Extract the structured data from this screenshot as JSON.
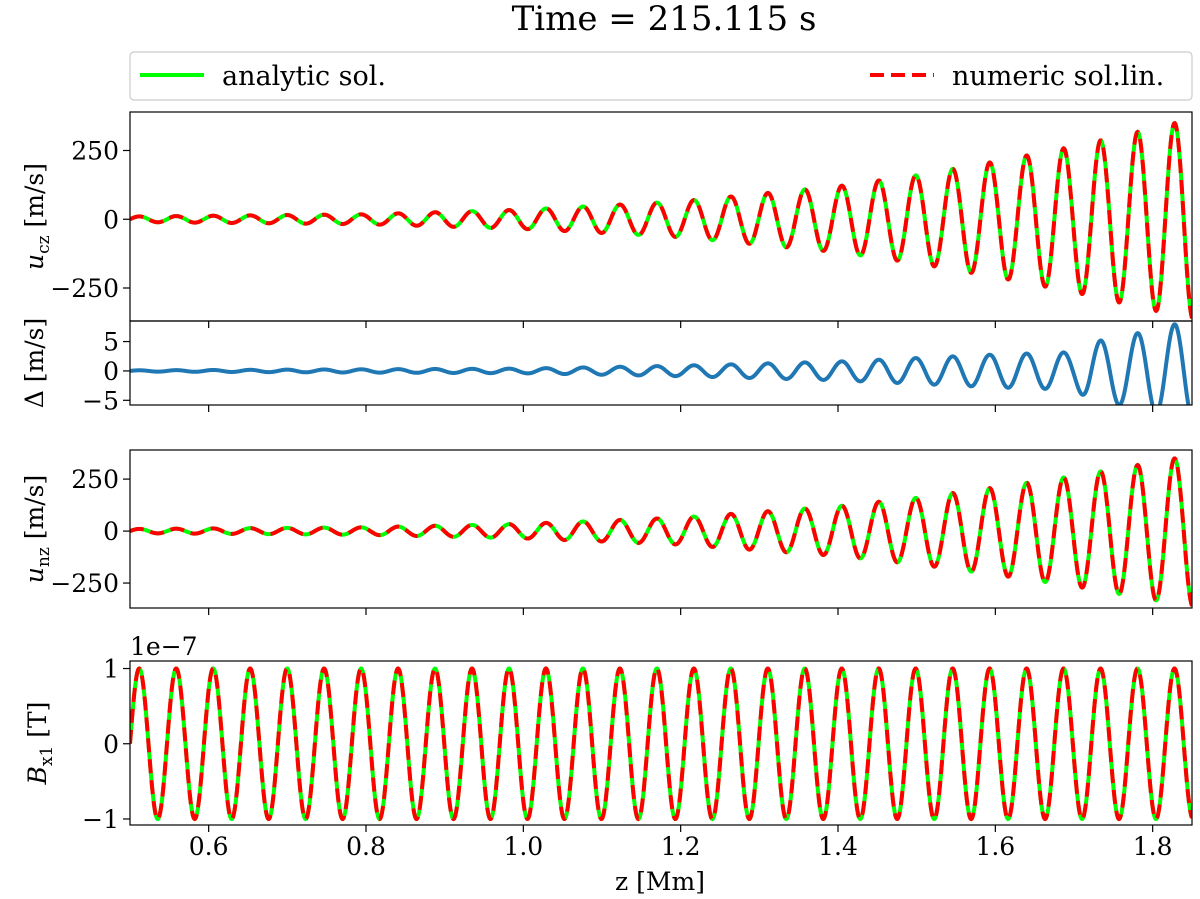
{
  "title": "Time = 215.115 s",
  "legend": {
    "position": "top-span",
    "entries": [
      {
        "label": "analytic sol.",
        "color": "#00ff00",
        "style": "solid"
      },
      {
        "label": "numeric sol.lin.",
        "color": "#ff0000",
        "style": "dashed"
      }
    ]
  },
  "xlabel": "z [Mm]",
  "chart_data": [
    {
      "type": "line",
      "panel": "u_cz",
      "ylabel_main": "u",
      "ylabel_sub": "cz",
      "ylabel_unit": " [m/s]",
      "xlim": [
        0.5,
        1.85
      ],
      "ylim": [
        -370,
        390
      ],
      "yticks": [
        250,
        0,
        -250
      ],
      "ytick_labels": [
        "250",
        "0",
        "−250"
      ],
      "wavelength_Mm": 0.047,
      "envelope": [
        [
          0.5,
          10
        ],
        [
          0.8,
          18
        ],
        [
          1.0,
          35
        ],
        [
          1.2,
          65
        ],
        [
          1.4,
          120
        ],
        [
          1.5,
          160
        ],
        [
          1.6,
          210
        ],
        [
          1.7,
          265
        ],
        [
          1.8,
          330
        ],
        [
          1.85,
          365
        ]
      ],
      "series": [
        {
          "name": "analytic sol.",
          "color": "#00ff00"
        },
        {
          "name": "numeric sol.lin.",
          "color": "#ff0000"
        }
      ]
    },
    {
      "type": "line",
      "panel": "delta",
      "ylabel_main": "Δ [m/s]",
      "xlim": [
        0.5,
        1.85
      ],
      "ylim": [
        -5.8,
        8.5
      ],
      "yticks": [
        5,
        0,
        -5
      ],
      "ytick_labels": [
        "5",
        "0",
        "−5"
      ],
      "wavelength_Mm": 0.047,
      "envelope": [
        [
          0.5,
          0.1
        ],
        [
          1.0,
          0.4
        ],
        [
          1.2,
          0.9
        ],
        [
          1.4,
          1.6
        ],
        [
          1.5,
          2.2
        ],
        [
          1.6,
          2.8
        ],
        [
          1.7,
          3.2
        ],
        [
          1.72,
          4.8
        ],
        [
          1.78,
          6.4
        ],
        [
          1.83,
          8.0
        ],
        [
          1.85,
          8.2
        ]
      ],
      "series": [
        {
          "color": "#1f77b4"
        }
      ]
    },
    {
      "type": "line",
      "panel": "u_nz",
      "ylabel_main": "u",
      "ylabel_sub": "nz",
      "ylabel_unit": " [m/s]",
      "xlim": [
        0.5,
        1.85
      ],
      "ylim": [
        -370,
        390
      ],
      "yticks": [
        250,
        0,
        -250
      ],
      "ytick_labels": [
        "250",
        "0",
        "−250"
      ],
      "wavelength_Mm": 0.047,
      "envelope": [
        [
          0.5,
          10
        ],
        [
          0.8,
          18
        ],
        [
          1.0,
          35
        ],
        [
          1.2,
          65
        ],
        [
          1.4,
          120
        ],
        [
          1.5,
          160
        ],
        [
          1.6,
          210
        ],
        [
          1.7,
          265
        ],
        [
          1.8,
          330
        ],
        [
          1.85,
          365
        ]
      ],
      "series": [
        {
          "name": "analytic sol.",
          "color": "#00ff00"
        },
        {
          "name": "numeric sol.lin.",
          "color": "#ff0000"
        }
      ]
    },
    {
      "type": "line",
      "panel": "B_x1",
      "ylabel_main": "B",
      "ylabel_sub": "x1",
      "ylabel_unit": " [T]",
      "offset_label": "1e−7",
      "xlim": [
        0.5,
        1.85
      ],
      "ylim": [
        -1.08,
        1.1
      ],
      "yticks": [
        1,
        0,
        -1
      ],
      "ytick_labels": [
        "1",
        "0",
        "−1"
      ],
      "wavelength_Mm": 0.047,
      "envelope": [
        [
          0.5,
          1.0
        ],
        [
          1.85,
          1.0
        ]
      ],
      "series": [
        {
          "name": "analytic sol.",
          "color": "#00ff00"
        },
        {
          "name": "numeric sol.lin.",
          "color": "#ff0000"
        }
      ]
    }
  ],
  "xticks": [
    0.6,
    0.8,
    1.0,
    1.2,
    1.4,
    1.6,
    1.8
  ],
  "xtick_labels": [
    "0.6",
    "0.8",
    "1.0",
    "1.2",
    "1.4",
    "1.6",
    "1.8"
  ]
}
